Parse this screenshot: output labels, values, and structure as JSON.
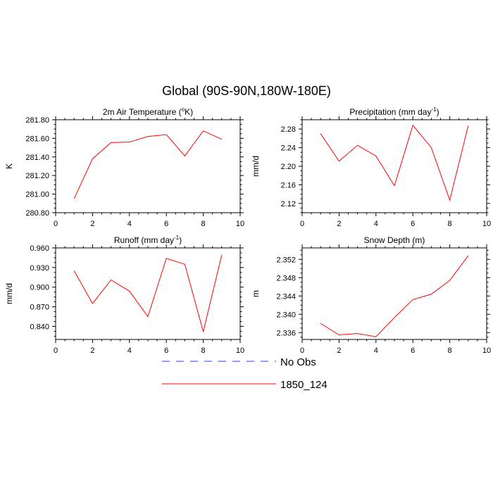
{
  "suptitle": "Global (90S-90N,180W-180E)",
  "colors": {
    "model": "#ff0000",
    "obs": "#3333ff"
  },
  "legend": {
    "entries": [
      {
        "label": "No Obs",
        "style": "dashed",
        "color": "#3333ff"
      },
      {
        "label": "1850_124",
        "style": "solid",
        "color": "#ff0000"
      }
    ]
  },
  "chart_data": [
    {
      "type": "line",
      "title": "2m Air Temperature (",
      "title_super": "o",
      "title_suffix": "K)",
      "xlabel": "",
      "ylabel": "K",
      "xlim": [
        0,
        10
      ],
      "ylim": [
        280.8,
        281.8
      ],
      "xticks": [
        0,
        2,
        4,
        6,
        8,
        10
      ],
      "yticks": [
        280.8,
        281.0,
        281.2,
        281.4,
        281.6,
        281.8
      ],
      "ytick_labels": [
        "280.80",
        "281.00",
        "281.20",
        "281.40",
        "281.60",
        "281.80"
      ],
      "series": [
        {
          "name": "1850_124",
          "x": [
            1,
            2,
            3,
            4,
            5,
            6,
            7,
            8,
            9
          ],
          "y": [
            280.95,
            281.38,
            281.555,
            281.56,
            281.62,
            281.64,
            281.41,
            281.68,
            281.59
          ]
        }
      ]
    },
    {
      "type": "line",
      "title": "Precipitation (mm day",
      "title_super": "-1",
      "title_suffix": ")",
      "xlabel": "",
      "ylabel": "mm/d",
      "xlim": [
        0,
        10
      ],
      "ylim": [
        2.1,
        2.3
      ],
      "xticks": [
        0,
        2,
        4,
        6,
        8,
        10
      ],
      "yticks": [
        2.12,
        2.16,
        2.2,
        2.24,
        2.28
      ],
      "ytick_labels": [
        "2.12",
        "2.16",
        "2.20",
        "2.24",
        "2.28"
      ],
      "series": [
        {
          "name": "1850_124",
          "x": [
            1,
            2,
            3,
            4,
            5,
            6,
            7,
            8,
            9
          ],
          "y": [
            2.27,
            2.211,
            2.245,
            2.222,
            2.158,
            2.288,
            2.24,
            2.127,
            2.287
          ]
        }
      ]
    },
    {
      "type": "line",
      "title": "Runoff (mm day",
      "title_super": "-1",
      "title_suffix": ")",
      "xlabel": "",
      "ylabel": "mm/d",
      "xlim": [
        0,
        10
      ],
      "ylim": [
        0.82,
        0.96
      ],
      "xticks": [
        0,
        2,
        4,
        6,
        8,
        10
      ],
      "yticks": [
        0.84,
        0.87,
        0.9,
        0.93,
        0.96
      ],
      "ytick_labels": [
        "0.840",
        "0.870",
        "0.900",
        "0.930",
        "0.960"
      ],
      "series": [
        {
          "name": "1850_124",
          "x": [
            1,
            2,
            3,
            4,
            5,
            6,
            7,
            8,
            9
          ],
          "y": [
            0.925,
            0.875,
            0.911,
            0.894,
            0.855,
            0.944,
            0.935,
            0.832,
            0.949
          ]
        }
      ]
    },
    {
      "type": "line",
      "title": "Snow Depth (m)",
      "title_super": "",
      "title_suffix": "",
      "xlabel": "",
      "ylabel": "m",
      "xlim": [
        0,
        10
      ],
      "ylim": [
        2.3345,
        2.3545
      ],
      "xticks": [
        0,
        2,
        4,
        6,
        8,
        10
      ],
      "yticks": [
        2.336,
        2.34,
        2.344,
        2.348,
        2.352
      ],
      "ytick_labels": [
        "2.336",
        "2.340",
        "2.344",
        "2.348",
        "2.352"
      ],
      "series": [
        {
          "name": "1850_124",
          "x": [
            1,
            2,
            3,
            4,
            5,
            6,
            7,
            8,
            9
          ],
          "y": [
            2.338,
            2.3355,
            2.3358,
            2.3351,
            2.3393,
            2.3432,
            2.3444,
            2.3474,
            2.3528
          ]
        }
      ]
    }
  ]
}
